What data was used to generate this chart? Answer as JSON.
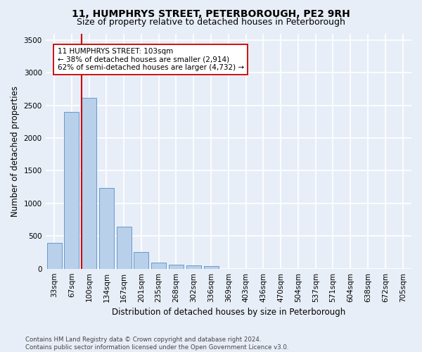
{
  "title": "11, HUMPHRYS STREET, PETERBOROUGH, PE2 9RH",
  "subtitle": "Size of property relative to detached houses in Peterborough",
  "xlabel": "Distribution of detached houses by size in Peterborough",
  "ylabel": "Number of detached properties",
  "footer_line1": "Contains HM Land Registry data © Crown copyright and database right 2024.",
  "footer_line2": "Contains public sector information licensed under the Open Government Licence v3.0.",
  "categories": [
    "33sqm",
    "67sqm",
    "100sqm",
    "134sqm",
    "167sqm",
    "201sqm",
    "235sqm",
    "268sqm",
    "302sqm",
    "336sqm",
    "369sqm",
    "403sqm",
    "436sqm",
    "470sqm",
    "504sqm",
    "537sqm",
    "571sqm",
    "604sqm",
    "638sqm",
    "672sqm",
    "705sqm"
  ],
  "bar_values": [
    390,
    2400,
    2610,
    1240,
    640,
    255,
    95,
    60,
    55,
    40,
    0,
    0,
    0,
    0,
    0,
    0,
    0,
    0,
    0,
    0,
    0
  ],
  "bar_color": "#b8d0ea",
  "bar_edge_color": "#6699cc",
  "vline_color": "#cc0000",
  "annotation_text": "11 HUMPHRYS STREET: 103sqm\n← 38% of detached houses are smaller (2,914)\n62% of semi-detached houses are larger (4,732) →",
  "ylim": [
    0,
    3600
  ],
  "yticks": [
    0,
    500,
    1000,
    1500,
    2000,
    2500,
    3000,
    3500
  ],
  "bg_color": "#e8eef8",
  "plot_bg_color": "#e8eef8",
  "grid_color": "#ffffff",
  "title_fontsize": 10,
  "subtitle_fontsize": 9,
  "axis_label_fontsize": 8.5,
  "tick_fontsize": 7.5,
  "ylabel_fontsize": 8.5
}
